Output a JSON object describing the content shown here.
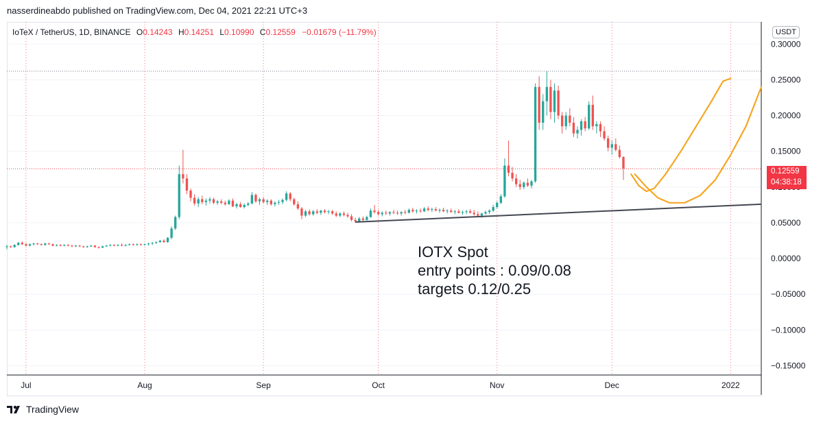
{
  "header": {
    "published": "nasserdineabdo published on TradingView.com, Dec 04, 2021 22:21 UTC+3"
  },
  "symbol": {
    "name": "IoTeX / TetherUS, 1D, BINANCE",
    "o_label": "O",
    "o_value": "0.14243",
    "h_label": "H",
    "h_value": "0.14251",
    "l_label": "L",
    "l_value": "0.10990",
    "c_label": "C",
    "c_value": "0.12559",
    "change": "−0.01679 (−11.79%)"
  },
  "currency": "USDT",
  "last_price": {
    "value": "0.12559",
    "countdown": "04:38:18",
    "color": "#f23645"
  },
  "annotation": {
    "line1": "IOTX Spot",
    "line2": "entry points : 0.09/0.08",
    "line3": "targets 0.12/0.25"
  },
  "footer": {
    "brand": "TradingView"
  },
  "colors": {
    "up": "#26a69a",
    "down": "#ef5350",
    "drawing": "#f5a623",
    "trendline": "#434651",
    "grid": "#f0f3fa",
    "vline": "#f23645"
  },
  "chart_data": {
    "type": "candlestick",
    "y_axis": {
      "ticks": [
        "0.30000",
        "0.25000",
        "0.20000",
        "0.15000",
        "0.10000",
        "0.05000",
        "0.00000",
        "−0.05000",
        "−0.10000",
        "−0.15000"
      ],
      "tick_values": [
        0.3,
        0.25,
        0.2,
        0.15,
        0.1,
        0.05,
        0.0,
        -0.05,
        -0.1,
        -0.15
      ],
      "range": [
        -0.163,
        0.331
      ]
    },
    "x_axis": {
      "ticks": [
        "Jul",
        "Aug",
        "Sep",
        "Oct",
        "Nov",
        "Dec",
        "2022"
      ],
      "tick_dates": [
        "2021-07-01",
        "2021-08-01",
        "2021-09-01",
        "2021-10-01",
        "2021-11-01",
        "2021-12-01",
        "2022-01-01"
      ],
      "range": [
        "2021-06-26",
        "2022-01-09"
      ]
    },
    "candles": [
      [
        "2021-06-26",
        0.016,
        0.019,
        0.013,
        0.017
      ],
      [
        "2021-06-27",
        0.017,
        0.018,
        0.015,
        0.016
      ],
      [
        "2021-06-28",
        0.016,
        0.02,
        0.015,
        0.019
      ],
      [
        "2021-06-29",
        0.019,
        0.023,
        0.018,
        0.022
      ],
      [
        "2021-06-30",
        0.022,
        0.024,
        0.019,
        0.02
      ],
      [
        "2021-07-01",
        0.02,
        0.022,
        0.017,
        0.018
      ],
      [
        "2021-07-02",
        0.018,
        0.021,
        0.017,
        0.02
      ],
      [
        "2021-07-03",
        0.02,
        0.022,
        0.018,
        0.021
      ],
      [
        "2021-07-04",
        0.021,
        0.022,
        0.019,
        0.02
      ],
      [
        "2021-07-05",
        0.02,
        0.021,
        0.018,
        0.019
      ],
      [
        "2021-07-06",
        0.019,
        0.022,
        0.018,
        0.021
      ],
      [
        "2021-07-07",
        0.021,
        0.022,
        0.019,
        0.02
      ],
      [
        "2021-07-08",
        0.02,
        0.021,
        0.017,
        0.018
      ],
      [
        "2021-07-09",
        0.018,
        0.02,
        0.017,
        0.019
      ],
      [
        "2021-07-10",
        0.019,
        0.02,
        0.017,
        0.018
      ],
      [
        "2021-07-11",
        0.018,
        0.02,
        0.017,
        0.019
      ],
      [
        "2021-07-12",
        0.019,
        0.02,
        0.017,
        0.018
      ],
      [
        "2021-07-13",
        0.018,
        0.019,
        0.016,
        0.017
      ],
      [
        "2021-07-14",
        0.017,
        0.019,
        0.016,
        0.018
      ],
      [
        "2021-07-15",
        0.018,
        0.019,
        0.016,
        0.017
      ],
      [
        "2021-07-16",
        0.017,
        0.018,
        0.015,
        0.016
      ],
      [
        "2021-07-17",
        0.016,
        0.018,
        0.015,
        0.017
      ],
      [
        "2021-07-18",
        0.017,
        0.019,
        0.016,
        0.018
      ],
      [
        "2021-07-19",
        0.018,
        0.019,
        0.015,
        0.016
      ],
      [
        "2021-07-20",
        0.016,
        0.017,
        0.014,
        0.015
      ],
      [
        "2021-07-21",
        0.015,
        0.018,
        0.015,
        0.017
      ],
      [
        "2021-07-22",
        0.017,
        0.019,
        0.016,
        0.018
      ],
      [
        "2021-07-23",
        0.018,
        0.02,
        0.017,
        0.019
      ],
      [
        "2021-07-24",
        0.019,
        0.02,
        0.017,
        0.018
      ],
      [
        "2021-07-25",
        0.018,
        0.02,
        0.017,
        0.019
      ],
      [
        "2021-07-26",
        0.019,
        0.021,
        0.017,
        0.018
      ],
      [
        "2021-07-27",
        0.018,
        0.02,
        0.017,
        0.019
      ],
      [
        "2021-07-28",
        0.019,
        0.021,
        0.018,
        0.02
      ],
      [
        "2021-07-29",
        0.02,
        0.021,
        0.018,
        0.019
      ],
      [
        "2021-07-30",
        0.019,
        0.021,
        0.018,
        0.02
      ],
      [
        "2021-07-31",
        0.02,
        0.021,
        0.018,
        0.019
      ],
      [
        "2021-08-01",
        0.019,
        0.021,
        0.018,
        0.02
      ],
      [
        "2021-08-02",
        0.02,
        0.022,
        0.018,
        0.021
      ],
      [
        "2021-08-03",
        0.021,
        0.023,
        0.019,
        0.022
      ],
      [
        "2021-08-04",
        0.022,
        0.024,
        0.02,
        0.023
      ],
      [
        "2021-08-05",
        0.023,
        0.026,
        0.022,
        0.025
      ],
      [
        "2021-08-06",
        0.025,
        0.027,
        0.022,
        0.023
      ],
      [
        "2021-08-07",
        0.023,
        0.03,
        0.022,
        0.029
      ],
      [
        "2021-08-08",
        0.029,
        0.045,
        0.027,
        0.042
      ],
      [
        "2021-08-09",
        0.042,
        0.06,
        0.04,
        0.058
      ],
      [
        "2021-08-10",
        0.058,
        0.13,
        0.055,
        0.118
      ],
      [
        "2021-08-11",
        0.118,
        0.152,
        0.105,
        0.112
      ],
      [
        "2021-08-12",
        0.112,
        0.118,
        0.09,
        0.095
      ],
      [
        "2021-08-13",
        0.095,
        0.098,
        0.08,
        0.085
      ],
      [
        "2021-08-14",
        0.085,
        0.09,
        0.074,
        0.077
      ],
      [
        "2021-08-15",
        0.077,
        0.086,
        0.072,
        0.083
      ],
      [
        "2021-08-16",
        0.083,
        0.088,
        0.076,
        0.079
      ],
      [
        "2021-08-17",
        0.079,
        0.084,
        0.074,
        0.081
      ],
      [
        "2021-08-18",
        0.081,
        0.086,
        0.077,
        0.083
      ],
      [
        "2021-08-19",
        0.083,
        0.085,
        0.076,
        0.078
      ],
      [
        "2021-08-20",
        0.078,
        0.082,
        0.075,
        0.08
      ],
      [
        "2021-08-21",
        0.08,
        0.083,
        0.076,
        0.078
      ],
      [
        "2021-08-22",
        0.078,
        0.081,
        0.074,
        0.076
      ],
      [
        "2021-08-23",
        0.076,
        0.083,
        0.075,
        0.081
      ],
      [
        "2021-08-24",
        0.081,
        0.084,
        0.072,
        0.073
      ],
      [
        "2021-08-25",
        0.073,
        0.078,
        0.07,
        0.076
      ],
      [
        "2021-08-26",
        0.076,
        0.079,
        0.071,
        0.072
      ],
      [
        "2021-08-27",
        0.072,
        0.077,
        0.07,
        0.075
      ],
      [
        "2021-08-28",
        0.075,
        0.079,
        0.073,
        0.077
      ],
      [
        "2021-08-29",
        0.077,
        0.093,
        0.076,
        0.089
      ],
      [
        "2021-08-30",
        0.089,
        0.091,
        0.078,
        0.08
      ],
      [
        "2021-08-31",
        0.08,
        0.085,
        0.075,
        0.083
      ],
      [
        "2021-09-01",
        0.083,
        0.086,
        0.077,
        0.079
      ],
      [
        "2021-09-02",
        0.079,
        0.083,
        0.075,
        0.081
      ],
      [
        "2021-09-03",
        0.081,
        0.083,
        0.074,
        0.076
      ],
      [
        "2021-09-04",
        0.076,
        0.08,
        0.073,
        0.078
      ],
      [
        "2021-09-05",
        0.078,
        0.082,
        0.075,
        0.079
      ],
      [
        "2021-09-06",
        0.079,
        0.084,
        0.076,
        0.082
      ],
      [
        "2021-09-07",
        0.082,
        0.094,
        0.08,
        0.091
      ],
      [
        "2021-09-08",
        0.091,
        0.093,
        0.08,
        0.083
      ],
      [
        "2021-09-09",
        0.083,
        0.085,
        0.074,
        0.076
      ],
      [
        "2021-09-10",
        0.076,
        0.08,
        0.068,
        0.07
      ],
      [
        "2021-09-11",
        0.07,
        0.072,
        0.055,
        0.06
      ],
      [
        "2021-09-12",
        0.06,
        0.068,
        0.058,
        0.066
      ],
      [
        "2021-09-13",
        0.066,
        0.069,
        0.06,
        0.062
      ],
      [
        "2021-09-14",
        0.062,
        0.068,
        0.06,
        0.066
      ],
      [
        "2021-09-15",
        0.066,
        0.069,
        0.062,
        0.064
      ],
      [
        "2021-09-16",
        0.064,
        0.068,
        0.061,
        0.067
      ],
      [
        "2021-09-17",
        0.067,
        0.069,
        0.063,
        0.065
      ],
      [
        "2021-09-18",
        0.065,
        0.068,
        0.062,
        0.066
      ],
      [
        "2021-09-19",
        0.066,
        0.068,
        0.061,
        0.063
      ],
      [
        "2021-09-20",
        0.063,
        0.066,
        0.058,
        0.06
      ],
      [
        "2021-09-21",
        0.06,
        0.065,
        0.058,
        0.063
      ],
      [
        "2021-09-22",
        0.063,
        0.066,
        0.059,
        0.061
      ],
      [
        "2021-09-23",
        0.061,
        0.064,
        0.057,
        0.059
      ],
      [
        "2021-09-24",
        0.059,
        0.062,
        0.052,
        0.054
      ],
      [
        "2021-09-25",
        0.054,
        0.057,
        0.05,
        0.052
      ],
      [
        "2021-09-26",
        0.052,
        0.058,
        0.051,
        0.056
      ],
      [
        "2021-09-27",
        0.056,
        0.059,
        0.052,
        0.054
      ],
      [
        "2021-09-28",
        0.054,
        0.06,
        0.053,
        0.058
      ],
      [
        "2021-09-29",
        0.058,
        0.07,
        0.057,
        0.067
      ],
      [
        "2021-09-30",
        0.067,
        0.075,
        0.063,
        0.065
      ],
      [
        "2021-10-01",
        0.065,
        0.068,
        0.06,
        0.062
      ],
      [
        "2021-10-02",
        0.062,
        0.066,
        0.059,
        0.064
      ],
      [
        "2021-10-03",
        0.064,
        0.067,
        0.061,
        0.063
      ],
      [
        "2021-10-04",
        0.063,
        0.066,
        0.06,
        0.065
      ],
      [
        "2021-10-05",
        0.065,
        0.068,
        0.062,
        0.064
      ],
      [
        "2021-10-06",
        0.064,
        0.067,
        0.061,
        0.063
      ],
      [
        "2021-10-07",
        0.063,
        0.066,
        0.06,
        0.065
      ],
      [
        "2021-10-08",
        0.065,
        0.068,
        0.062,
        0.064
      ],
      [
        "2021-10-09",
        0.064,
        0.07,
        0.063,
        0.068
      ],
      [
        "2021-10-10",
        0.068,
        0.071,
        0.064,
        0.066
      ],
      [
        "2021-10-11",
        0.066,
        0.069,
        0.063,
        0.067
      ],
      [
        "2021-10-12",
        0.067,
        0.07,
        0.064,
        0.066
      ],
      [
        "2021-10-13",
        0.066,
        0.072,
        0.065,
        0.07
      ],
      [
        "2021-10-14",
        0.07,
        0.073,
        0.066,
        0.068
      ],
      [
        "2021-10-15",
        0.068,
        0.071,
        0.065,
        0.069
      ],
      [
        "2021-10-16",
        0.069,
        0.072,
        0.066,
        0.067
      ],
      [
        "2021-10-17",
        0.067,
        0.07,
        0.064,
        0.068
      ],
      [
        "2021-10-18",
        0.068,
        0.071,
        0.065,
        0.066
      ],
      [
        "2021-10-19",
        0.066,
        0.069,
        0.063,
        0.067
      ],
      [
        "2021-10-20",
        0.067,
        0.07,
        0.064,
        0.065
      ],
      [
        "2021-10-21",
        0.065,
        0.068,
        0.062,
        0.066
      ],
      [
        "2021-10-22",
        0.066,
        0.069,
        0.063,
        0.064
      ],
      [
        "2021-10-23",
        0.064,
        0.067,
        0.061,
        0.065
      ],
      [
        "2021-10-24",
        0.065,
        0.068,
        0.062,
        0.066
      ],
      [
        "2021-10-25",
        0.066,
        0.069,
        0.063,
        0.064
      ],
      [
        "2021-10-26",
        0.064,
        0.068,
        0.06,
        0.062
      ],
      [
        "2021-10-27",
        0.062,
        0.066,
        0.058,
        0.06
      ],
      [
        "2021-10-28",
        0.06,
        0.064,
        0.057,
        0.063
      ],
      [
        "2021-10-29",
        0.063,
        0.067,
        0.061,
        0.065
      ],
      [
        "2021-10-30",
        0.065,
        0.069,
        0.062,
        0.067
      ],
      [
        "2021-10-31",
        0.067,
        0.075,
        0.065,
        0.072
      ],
      [
        "2021-11-01",
        0.072,
        0.08,
        0.07,
        0.078
      ],
      [
        "2021-11-02",
        0.078,
        0.09,
        0.076,
        0.087
      ],
      [
        "2021-11-03",
        0.087,
        0.14,
        0.085,
        0.13
      ],
      [
        "2021-11-04",
        0.13,
        0.165,
        0.115,
        0.12
      ],
      [
        "2021-11-05",
        0.12,
        0.128,
        0.108,
        0.112
      ],
      [
        "2021-11-06",
        0.112,
        0.118,
        0.1,
        0.104
      ],
      [
        "2021-11-07",
        0.104,
        0.11,
        0.096,
        0.1
      ],
      [
        "2021-11-08",
        0.1,
        0.108,
        0.097,
        0.106
      ],
      [
        "2021-11-09",
        0.106,
        0.112,
        0.1,
        0.102
      ],
      [
        "2021-11-10",
        0.102,
        0.11,
        0.098,
        0.108
      ],
      [
        "2021-11-11",
        0.108,
        0.245,
        0.106,
        0.24
      ],
      [
        "2021-11-12",
        0.24,
        0.255,
        0.18,
        0.19
      ],
      [
        "2021-11-13",
        0.19,
        0.23,
        0.18,
        0.22
      ],
      [
        "2021-11-14",
        0.22,
        0.262,
        0.2,
        0.24
      ],
      [
        "2021-11-15",
        0.24,
        0.25,
        0.195,
        0.205
      ],
      [
        "2021-11-16",
        0.205,
        0.245,
        0.19,
        0.235
      ],
      [
        "2021-11-17",
        0.235,
        0.242,
        0.195,
        0.2
      ],
      [
        "2021-11-18",
        0.2,
        0.205,
        0.175,
        0.185
      ],
      [
        "2021-11-19",
        0.185,
        0.205,
        0.18,
        0.2
      ],
      [
        "2021-11-20",
        0.2,
        0.21,
        0.185,
        0.19
      ],
      [
        "2021-11-21",
        0.19,
        0.198,
        0.17,
        0.175
      ],
      [
        "2021-11-22",
        0.175,
        0.185,
        0.168,
        0.18
      ],
      [
        "2021-11-23",
        0.18,
        0.195,
        0.172,
        0.192
      ],
      [
        "2021-11-24",
        0.192,
        0.198,
        0.178,
        0.182
      ],
      [
        "2021-11-25",
        0.182,
        0.22,
        0.18,
        0.215
      ],
      [
        "2021-11-26",
        0.215,
        0.228,
        0.18,
        0.185
      ],
      [
        "2021-11-27",
        0.185,
        0.192,
        0.175,
        0.188
      ],
      [
        "2021-11-28",
        0.188,
        0.192,
        0.17,
        0.178
      ],
      [
        "2021-11-29",
        0.178,
        0.185,
        0.165,
        0.168
      ],
      [
        "2021-11-30",
        0.168,
        0.172,
        0.15,
        0.155
      ],
      [
        "2021-12-01",
        0.155,
        0.165,
        0.145,
        0.16
      ],
      [
        "2021-12-02",
        0.16,
        0.168,
        0.15,
        0.152
      ],
      [
        "2021-12-03",
        0.152,
        0.158,
        0.14,
        0.142
      ],
      [
        "2021-12-04",
        0.142,
        0.143,
        0.11,
        0.126
      ]
    ],
    "price_lines": {
      "last_close": 0.12559,
      "recent_high": 0.262
    },
    "drawings": {
      "trendline": [
        [
          "2021-09-25",
          0.051
        ],
        [
          "2022-01-09",
          0.076
        ]
      ],
      "curve_short": [
        [
          "2021-12-06",
          0.118
        ],
        [
          "2021-12-08",
          0.102
        ],
        [
          "2021-12-10",
          0.094
        ],
        [
          "2021-12-12",
          0.098
        ],
        [
          "2021-12-15",
          0.118
        ],
        [
          "2021-12-19",
          0.15
        ],
        [
          "2021-12-23",
          0.185
        ],
        [
          "2021-12-27",
          0.22
        ],
        [
          "2021-12-30",
          0.248
        ],
        [
          "2022-01-01",
          0.252
        ]
      ],
      "curve_long": [
        [
          "2021-12-07",
          0.118
        ],
        [
          "2021-12-10",
          0.1
        ],
        [
          "2021-12-13",
          0.085
        ],
        [
          "2021-12-16",
          0.078
        ],
        [
          "2021-12-20",
          0.078
        ],
        [
          "2021-12-24",
          0.088
        ],
        [
          "2021-12-28",
          0.11
        ],
        [
          "2022-01-01",
          0.145
        ],
        [
          "2022-01-05",
          0.185
        ],
        [
          "2022-01-09",
          0.24
        ]
      ]
    }
  }
}
